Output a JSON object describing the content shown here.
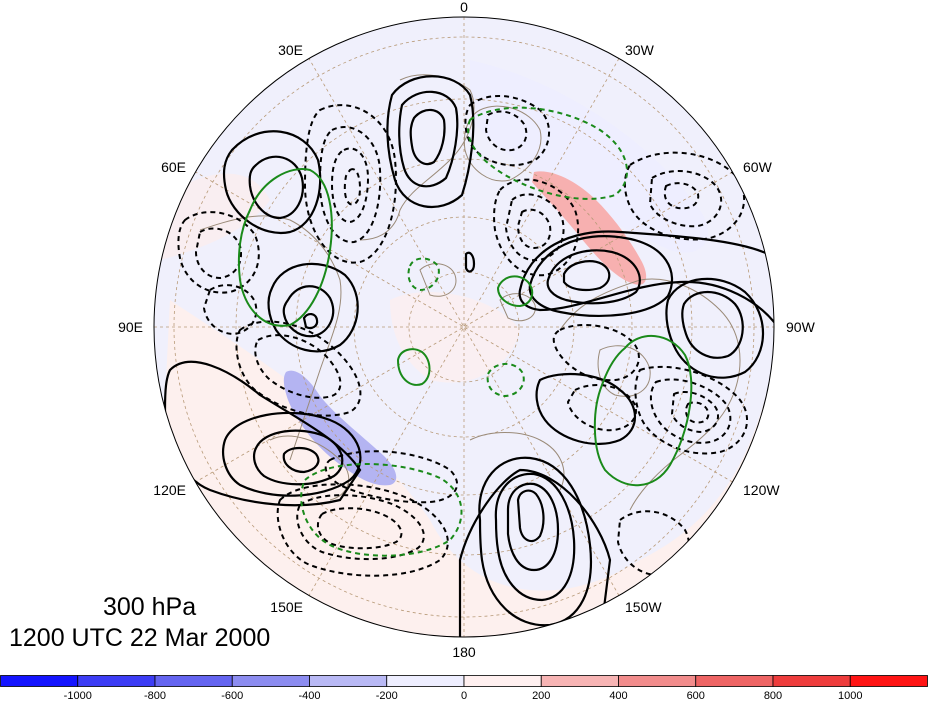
{
  "title": {
    "level": "300 hPa",
    "time": "1200 UTC 22 Mar 2000"
  },
  "longitude_labels": [
    "0",
    "30W",
    "60W",
    "90W",
    "120W",
    "150W",
    "180",
    "150E",
    "120E",
    "90E",
    "60E",
    "30E"
  ],
  "colorbar": {
    "labels": [
      "-1000",
      "-800",
      "-600",
      "-400",
      "-200",
      "0",
      "200",
      "400",
      "600",
      "800",
      "1000"
    ],
    "colors": [
      "#1414ff",
      "#3c3cf5",
      "#6464f0",
      "#8c8cf0",
      "#b9b9f5",
      "#eeeeff",
      "#fff0f0",
      "#f7b4b4",
      "#f28c8c",
      "#ee6464",
      "#ee3c3c",
      "#ff1414"
    ]
  },
  "contour_colors": {
    "positive": "#000000",
    "negative": "#000000",
    "secondary": "#1a8a1a",
    "coast": "#9a8a78",
    "grid": "#b89a78"
  }
}
